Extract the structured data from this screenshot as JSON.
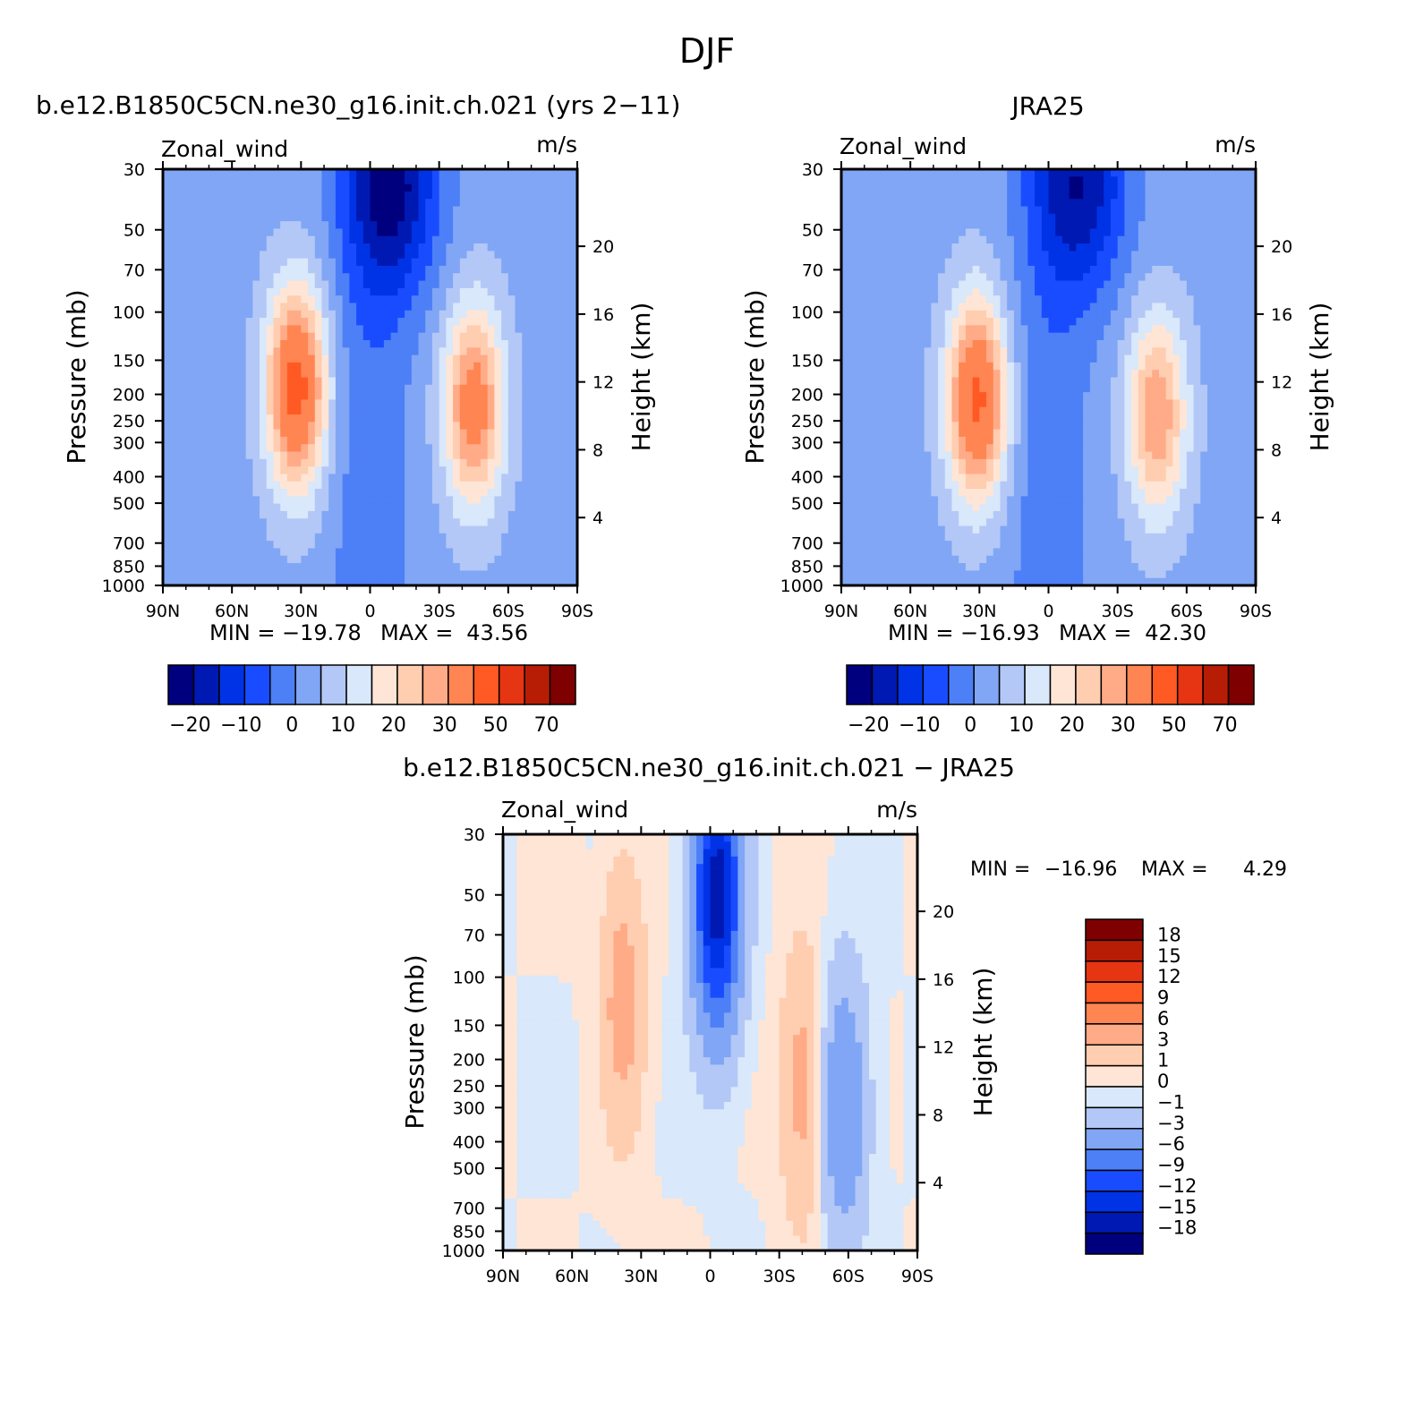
{
  "figure_title": "DJF",
  "chart_data": [
    {
      "type": "heatmap",
      "title": "b.e12.B1850C5CN.ne30_g16.init.ch.021 (yrs 2−11)",
      "left_label": "Zonal_wind",
      "units": "m/s",
      "xlabel": "",
      "ylabel": "Pressure (mb)",
      "ylabel_right": "Height (km)",
      "x_ticks": [
        "90N",
        "60N",
        "30N",
        "0",
        "30S",
        "60S",
        "90S"
      ],
      "x_range": [
        -90,
        90
      ],
      "y_ticks": [
        "30",
        "50",
        "70",
        "100",
        "150",
        "200",
        "250",
        "300",
        "400",
        "500",
        "700",
        "850",
        "1000"
      ],
      "y_range": [
        1000,
        30
      ],
      "y_scale": "log",
      "right_ticks": [
        "20",
        "16",
        "12",
        "8",
        "4"
      ],
      "min_label": "MIN =",
      "min_value": "−19.78",
      "max_label": "MAX =",
      "max_value": "43.56",
      "colorbar_orientation": "horizontal",
      "colorbar_labels": [
        "−20",
        "−10",
        "0",
        "10",
        "20",
        "30",
        "50",
        "70"
      ],
      "colors": [
        "#00007f",
        "#0019b2",
        "#0033e6",
        "#1a4cff",
        "#4d7ff7",
        "#80a6f5",
        "#b3c8f7",
        "#d9e8fa",
        "#ffe5d5",
        "#ffcdb0",
        "#ffab88",
        "#ff8552",
        "#ff5a24",
        "#e63512",
        "#b71d05",
        "#7f0000"
      ],
      "features": [
        {
          "kind": "jet",
          "lat": 32,
          "p": 190,
          "peak": 43.56
        },
        {
          "kind": "jet",
          "lat": -45,
          "p": 220,
          "peak": 35
        },
        {
          "kind": "easterly",
          "lat": -10,
          "p": 35,
          "peak": -19.78
        }
      ]
    },
    {
      "type": "heatmap",
      "title": "JRA25",
      "left_label": "Zonal_wind",
      "units": "m/s",
      "xlabel": "",
      "ylabel": "Pressure (mb)",
      "ylabel_right": "Height (km)",
      "x_ticks": [
        "90N",
        "60N",
        "30N",
        "0",
        "30S",
        "60S",
        "90S"
      ],
      "x_range": [
        -90,
        90
      ],
      "y_ticks": [
        "30",
        "50",
        "70",
        "100",
        "150",
        "200",
        "250",
        "300",
        "400",
        "500",
        "700",
        "850",
        "1000"
      ],
      "y_range": [
        1000,
        30
      ],
      "y_scale": "log",
      "right_ticks": [
        "20",
        "16",
        "12",
        "8",
        "4"
      ],
      "min_label": "MIN =",
      "min_value": "−16.93",
      "max_label": "MAX =",
      "max_value": "42.30",
      "colorbar_orientation": "horizontal",
      "colorbar_labels": [
        "−20",
        "−10",
        "0",
        "10",
        "20",
        "30",
        "50",
        "70"
      ],
      "colors": [
        "#00007f",
        "#0019b2",
        "#0033e6",
        "#1a4cff",
        "#4d7ff7",
        "#80a6f5",
        "#b3c8f7",
        "#d9e8fa",
        "#ffe5d5",
        "#ffcdb0",
        "#ffab88",
        "#ff8552",
        "#ff5a24",
        "#e63512",
        "#b71d05",
        "#7f0000"
      ],
      "features": [
        {
          "kind": "jet",
          "lat": 31,
          "p": 210,
          "peak": 42.3
        },
        {
          "kind": "jet",
          "lat": -47,
          "p": 240,
          "peak": 30
        },
        {
          "kind": "easterly",
          "lat": -15,
          "p": 35,
          "peak": -16.93
        }
      ]
    },
    {
      "type": "heatmap",
      "title": "b.e12.B1850C5CN.ne30_g16.init.ch.021 − JRA25",
      "left_label": "Zonal_wind",
      "units": "m/s",
      "xlabel": "",
      "ylabel": "Pressure (mb)",
      "ylabel_right": "Height (km)",
      "x_ticks": [
        "90N",
        "60N",
        "30N",
        "0",
        "30S",
        "60S",
        "90S"
      ],
      "x_range": [
        -90,
        90
      ],
      "y_ticks": [
        "30",
        "50",
        "70",
        "100",
        "150",
        "200",
        "250",
        "300",
        "400",
        "500",
        "700",
        "850",
        "1000"
      ],
      "y_range": [
        1000,
        30
      ],
      "y_scale": "log",
      "right_ticks": [
        "20",
        "16",
        "12",
        "8",
        "4"
      ],
      "min_label": "MIN =",
      "min_value": "−16.96",
      "max_label": "MAX =",
      "max_value": "4.29",
      "colorbar_orientation": "vertical",
      "colorbar_labels": [
        "18",
        "15",
        "12",
        "9",
        "6",
        "3",
        "1",
        "0",
        "−1",
        "−3",
        "−6",
        "−9",
        "−12",
        "−15",
        "−18"
      ],
      "colors": [
        "#7f0000",
        "#b71d05",
        "#e63512",
        "#ff5a24",
        "#ff8552",
        "#ffab88",
        "#ffcdb0",
        "#ffe5d5",
        "#d9e8fa",
        "#b3c8f7",
        "#80a6f5",
        "#4d7ff7",
        "#1a4cff",
        "#0033e6",
        "#0019b2",
        "#00007f"
      ],
      "features": [
        {
          "kind": "positive",
          "lat": 38,
          "p": 120,
          "peak": 4.29
        },
        {
          "kind": "negative",
          "lat": -3,
          "p": 50,
          "peak": -16.96
        },
        {
          "kind": "positive",
          "lat": -40,
          "p": 250,
          "peak": 4
        },
        {
          "kind": "negative",
          "lat": -58,
          "p": 300,
          "peak": -6
        }
      ]
    }
  ]
}
